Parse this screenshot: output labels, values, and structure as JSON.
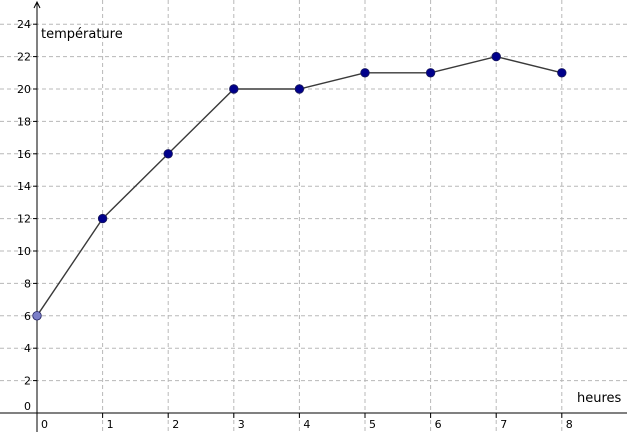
{
  "chart_data": {
    "type": "line",
    "xlabel": "heures",
    "ylabel": "température",
    "xlim": [
      0,
      9
    ],
    "ylim": [
      -1,
      24
    ],
    "grid": true,
    "x_ticks": [
      0,
      1,
      2,
      3,
      4,
      5,
      6,
      7,
      8
    ],
    "y_ticks": [
      0,
      2,
      4,
      6,
      8,
      10,
      12,
      14,
      16,
      18,
      20,
      22,
      24
    ],
    "series": [
      {
        "x": [
          0,
          1,
          2,
          3,
          4,
          5,
          6,
          7,
          8
        ],
        "values": [
          6,
          12,
          16,
          20,
          20,
          21,
          21,
          22,
          21
        ],
        "line_color": "#3a3a3a",
        "point_color": "#00008b",
        "first_point_color": "#7b7fc8"
      }
    ]
  }
}
